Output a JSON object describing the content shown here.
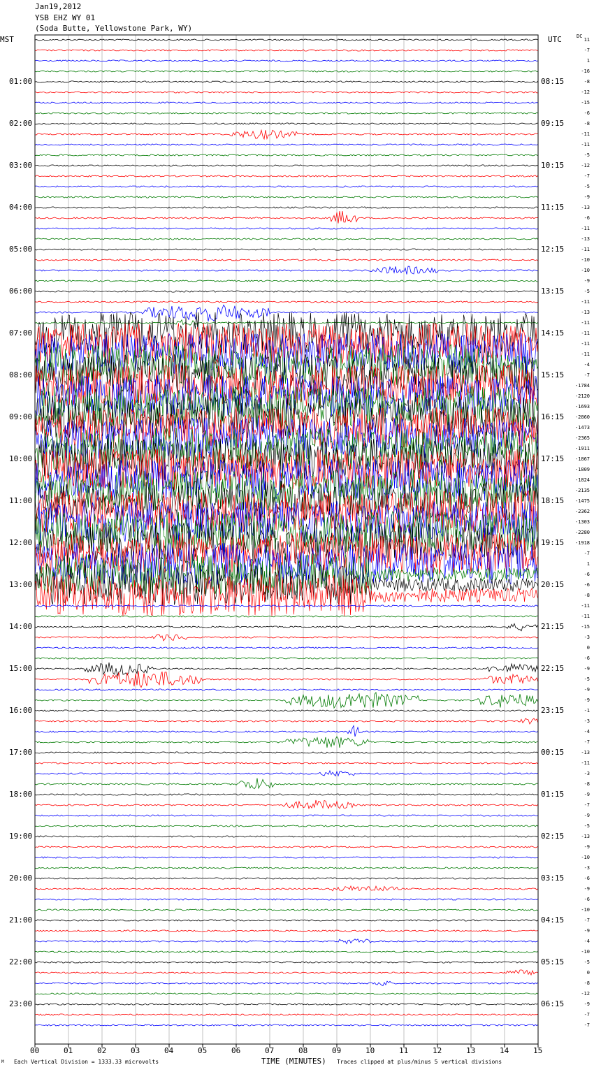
{
  "header": {
    "line1": "Jan19,2012",
    "line2": "YSB EHZ WY 01",
    "line3": "(Soda Butte, Yellowstone Park, WY)"
  },
  "left_axis_title": "MST",
  "right_axis_title": "UTC",
  "dc_label": "DC",
  "footer": {
    "left_mark": "M",
    "division_note": "Each Vertical Division = 1333.33 microvolts",
    "xlabel": "TIME (MINUTES)",
    "clip_note": "Traces clipped at plus/minus 5 vertical divisions"
  },
  "chart_data": {
    "type": "line",
    "title": "",
    "x_ticks": [
      "00",
      "01",
      "02",
      "03",
      "04",
      "05",
      "06",
      "07",
      "08",
      "09",
      "10",
      "11",
      "12",
      "13",
      "14",
      "15"
    ],
    "xlim": [
      0,
      15
    ],
    "trace_colors": [
      "#000000",
      "#ff0000",
      "#0000ff",
      "#007a00"
    ],
    "left_hour_labels": [
      "01:00",
      "02:00",
      "03:00",
      "04:00",
      "05:00",
      "06:00",
      "07:00",
      "08:00",
      "09:00",
      "10:00",
      "11:00",
      "12:00",
      "13:00",
      "14:00",
      "15:00",
      "16:00",
      "17:00",
      "18:00",
      "19:00",
      "20:00",
      "21:00",
      "22:00",
      "23:00"
    ],
    "right_hour_labels": [
      "08:15",
      "09:15",
      "10:15",
      "11:15",
      "12:15",
      "13:15",
      "14:15",
      "15:15",
      "16:15",
      "17:15",
      "18:15",
      "19:15",
      "20:15",
      "21:15",
      "22:15",
      "23:15",
      "00:15",
      "01:15",
      "02:15",
      "03:15",
      "04:15",
      "05:15",
      "06:15"
    ],
    "dc_offsets": [
      "11",
      "-7",
      "1",
      "-16",
      "-8",
      "-12",
      "-15",
      "-6",
      "-8",
      "-11",
      "-11",
      "-5",
      "-12",
      "-7",
      "-5",
      "-9",
      "-13",
      "-6",
      "-11",
      "-13",
      "-11",
      "-10",
      "-10",
      "-9",
      "-5",
      "-11",
      "-13",
      "-11",
      "-11",
      "-11",
      "-11",
      "-4",
      "-7",
      "-1784",
      "-2120",
      "-1693",
      "-2860",
      "-1473",
      "-2365",
      "-1911",
      "-1867",
      "-1809",
      "-1824",
      "-2135",
      "-1475",
      "-2362",
      "-1303",
      "-2280",
      "-1918",
      "-7",
      "1",
      "-6",
      "-6",
      "-8",
      "-11",
      "-11",
      "-15",
      "-3",
      "0",
      "-6",
      "-9",
      "-5",
      "-9",
      "-9",
      "-1",
      "-3",
      "-4",
      "-7",
      "-13",
      "-11",
      "-3",
      "-8",
      "-9",
      "-7",
      "-9",
      "-5",
      "-13",
      "-9",
      "-10",
      "-3",
      "-6",
      "-9",
      "-6",
      "-10",
      "-7",
      "-9",
      "-4",
      "-10",
      "-5",
      "0",
      "-8",
      "-12",
      "-9",
      "-7",
      "-7"
    ],
    "events": [
      {
        "trace": 9,
        "start_min": 5.8,
        "end_min": 7.8,
        "amp": 0.45
      },
      {
        "trace": 17,
        "start_min": 8.8,
        "end_min": 9.6,
        "amp": 0.8
      },
      {
        "trace": 22,
        "start_min": 10.0,
        "end_min": 12.0,
        "amp": 0.4
      },
      {
        "trace": 26,
        "start_min": 3.2,
        "end_min": 7.0,
        "amp": 0.9
      },
      {
        "trace": 27,
        "start_min": 4.2,
        "end_min": 4.8,
        "amp": 0.3
      },
      {
        "trace": 56,
        "start_min": 14.0,
        "end_min": 15.0,
        "amp": 0.35
      },
      {
        "trace": 57,
        "start_min": 3.5,
        "end_min": 4.5,
        "amp": 0.35
      },
      {
        "trace": 60,
        "start_min": 1.5,
        "end_min": 3.5,
        "amp": 0.7
      },
      {
        "trace": 60,
        "start_min": 13.5,
        "end_min": 15.0,
        "amp": 0.5
      },
      {
        "trace": 61,
        "start_min": 1.6,
        "end_min": 5.0,
        "amp": 0.9
      },
      {
        "trace": 61,
        "start_min": 13.3,
        "end_min": 15.0,
        "amp": 0.5
      },
      {
        "trace": 63,
        "start_min": 7.5,
        "end_min": 11.5,
        "amp": 0.9
      },
      {
        "trace": 63,
        "start_min": 13.2,
        "end_min": 15.0,
        "amp": 0.8
      },
      {
        "trace": 65,
        "start_min": 14.5,
        "end_min": 15.0,
        "amp": 0.3
      },
      {
        "trace": 66,
        "start_min": 9.3,
        "end_min": 9.7,
        "amp": 0.6
      },
      {
        "trace": 67,
        "start_min": 7.5,
        "end_min": 10.0,
        "amp": 0.6
      },
      {
        "trace": 70,
        "start_min": 8.5,
        "end_min": 9.5,
        "amp": 0.3
      },
      {
        "trace": 71,
        "start_min": 6.0,
        "end_min": 7.2,
        "amp": 0.6
      },
      {
        "trace": 73,
        "start_min": 7.4,
        "end_min": 9.5,
        "amp": 0.45
      },
      {
        "trace": 81,
        "start_min": 8.8,
        "end_min": 10.8,
        "amp": 0.3
      },
      {
        "trace": 86,
        "start_min": 9.0,
        "end_min": 10.0,
        "amp": 0.25
      },
      {
        "trace": 89,
        "start_min": 14.0,
        "end_min": 15.0,
        "amp": 0.25
      },
      {
        "trace": 90,
        "start_min": 10.0,
        "end_min": 10.6,
        "amp": 0.3
      }
    ],
    "saturation": {
      "first_trace": 28,
      "last_trace": 53,
      "note": "Traces clipped at plus/minus 5 vertical divisions"
    }
  }
}
